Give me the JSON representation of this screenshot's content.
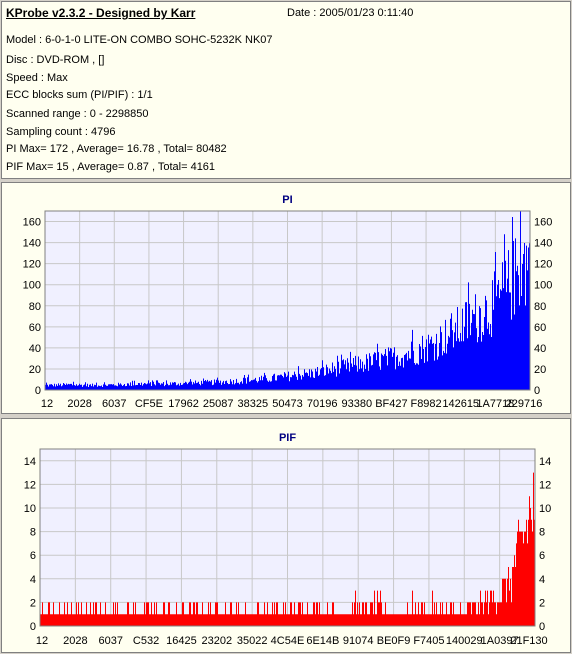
{
  "header": {
    "title": "KProbe v2.3.2 - Designed by Karr",
    "date": "Date : 2005/01/23 0:11:40"
  },
  "info": [
    "Model : 6-0-1-0 LITE-ON COMBO SOHC-5232K NK07",
    "Disc : DVD-ROM ,  []",
    "Speed : Max",
    "ECC blocks sum (PI/PIF) : 1/1",
    "Scanned range : 0 - 2298850",
    "Sampling count : 4796",
    "PI Max= 172 , Average= 16.78 , Total= 80482",
    "PIF Max= 15 , Average= 0.87 , Total= 4161"
  ],
  "colors": {
    "pi": "#0000ff",
    "pif": "#ff0000",
    "plot_bg": "#f0f0ff",
    "grid": "#c8c8c8"
  },
  "chart_data": [
    {
      "type": "bar",
      "title": "PI",
      "ylim": [
        0,
        170
      ],
      "yticks": [
        0,
        20,
        40,
        60,
        80,
        100,
        120,
        140,
        160
      ],
      "xticks": [
        "12",
        "2028",
        "6037",
        "CF5E",
        "17962",
        "25087",
        "38325",
        "50473",
        "70196",
        "93380",
        "BF427",
        "F8982",
        "142615",
        "1A7718",
        "229716"
      ],
      "grid": true,
      "envelope": [
        [
          0.0,
          6
        ],
        [
          0.05,
          7
        ],
        [
          0.1,
          6
        ],
        [
          0.15,
          7
        ],
        [
          0.2,
          8
        ],
        [
          0.25,
          8
        ],
        [
          0.3,
          9
        ],
        [
          0.35,
          10
        ],
        [
          0.4,
          12
        ],
        [
          0.45,
          14
        ],
        [
          0.5,
          18
        ],
        [
          0.55,
          22
        ],
        [
          0.6,
          28
        ],
        [
          0.65,
          34
        ],
        [
          0.7,
          40
        ],
        [
          0.75,
          48
        ],
        [
          0.8,
          60
        ],
        [
          0.85,
          80
        ],
        [
          0.9,
          100
        ],
        [
          0.93,
          115
        ],
        [
          0.96,
          140
        ],
        [
          0.98,
          160
        ],
        [
          1.0,
          172
        ]
      ]
    },
    {
      "type": "bar",
      "title": "PIF",
      "ylim": [
        0,
        15
      ],
      "yticks": [
        0,
        2,
        4,
        6,
        8,
        10,
        12,
        14
      ],
      "xticks": [
        "12",
        "2028",
        "6037",
        "C532",
        "16425",
        "23202",
        "35022",
        "4C54E",
        "6E14B",
        "91074",
        "BE0F9",
        "F7405",
        "140029",
        "1A0397",
        "21F130"
      ],
      "grid": true,
      "envelope": [
        [
          0.0,
          1
        ],
        [
          0.5,
          1
        ],
        [
          0.75,
          1.2
        ],
        [
          0.82,
          1.6
        ],
        [
          0.86,
          2
        ],
        [
          0.9,
          3
        ],
        [
          0.93,
          4
        ],
        [
          0.95,
          6
        ],
        [
          0.97,
          10
        ],
        [
          0.99,
          14
        ],
        [
          1.0,
          15
        ]
      ]
    }
  ]
}
